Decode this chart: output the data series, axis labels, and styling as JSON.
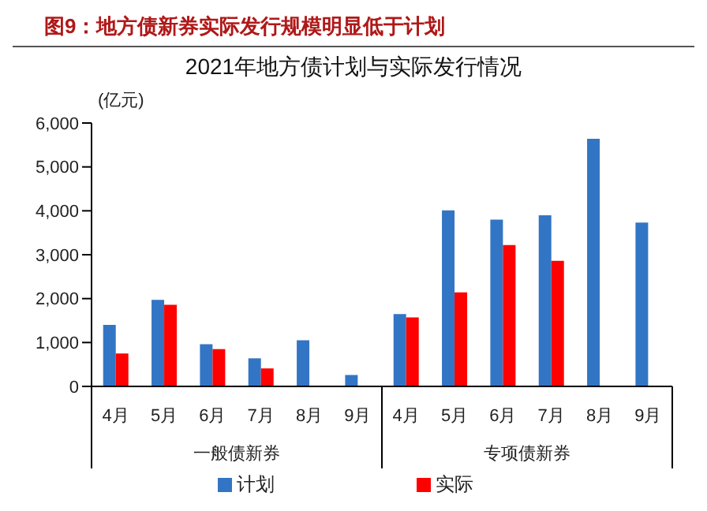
{
  "chart_data": {
    "type": "bar",
    "title": "图9：地方债新券实际发行规模明显低于计划",
    "subtitle": "2021年地方债计划与实际发行情况",
    "ylabel": "(亿元)",
    "categories": [
      "4月",
      "5月",
      "6月",
      "7月",
      "8月",
      "9月",
      "4月",
      "5月",
      "6月",
      "7月",
      "8月",
      "9月"
    ],
    "annotations": [
      "一般债新券",
      "专项债新券"
    ],
    "series": [
      {
        "name": "计划",
        "color": "#3375c5",
        "values": [
          1400,
          1970,
          960,
          640,
          1050,
          260,
          1650,
          4010,
          3800,
          3900,
          5640,
          3730
        ]
      },
      {
        "name": "实际",
        "color": "#ff0000",
        "values": [
          750,
          1860,
          850,
          410,
          null,
          null,
          1570,
          2140,
          3220,
          2860,
          null,
          null
        ]
      }
    ],
    "ylim": [
      0,
      6000
    ],
    "yticks": [
      {
        "value": 0,
        "label": "0"
      },
      {
        "value": 1000,
        "label": "1,000"
      },
      {
        "value": 2000,
        "label": "2,000"
      },
      {
        "value": 3000,
        "label": "3,000"
      },
      {
        "value": 4000,
        "label": "4,000"
      },
      {
        "value": 5000,
        "label": "5,000"
      },
      {
        "value": 6000,
        "label": "6,000"
      }
    ],
    "grid": false,
    "legend": "bottom"
  }
}
